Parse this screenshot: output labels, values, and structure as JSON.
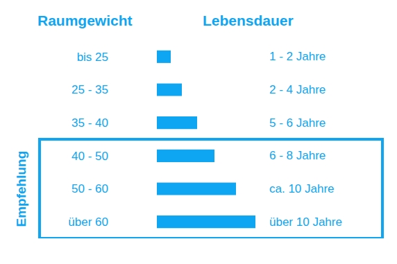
{
  "chart_data": {
    "type": "bar",
    "orientation": "horizontal",
    "ylabel": "Raumgewicht",
    "xlabel": "Lebensdauer",
    "categories": [
      "bis 25",
      "25 - 35",
      "35 - 40",
      "40 - 50",
      "50 - 60",
      "über 60"
    ],
    "values": [
      20,
      36,
      58,
      83,
      114,
      142
    ],
    "lifetime_labels": [
      "1 - 2 Jahre",
      "2 - 4 Jahre",
      "5 - 6 Jahre",
      "6 - 8 Jahre",
      "ca. 10 Jahre",
      "über 10 Jahre"
    ],
    "highlight": {
      "label": "Empfehlung",
      "categories": [
        "40 - 50",
        "50 - 60",
        "über 60"
      ]
    },
    "color": "#0ea5f2",
    "xlim": [
      0,
      142
    ],
    "tick_labels": "y",
    "grid": false
  }
}
